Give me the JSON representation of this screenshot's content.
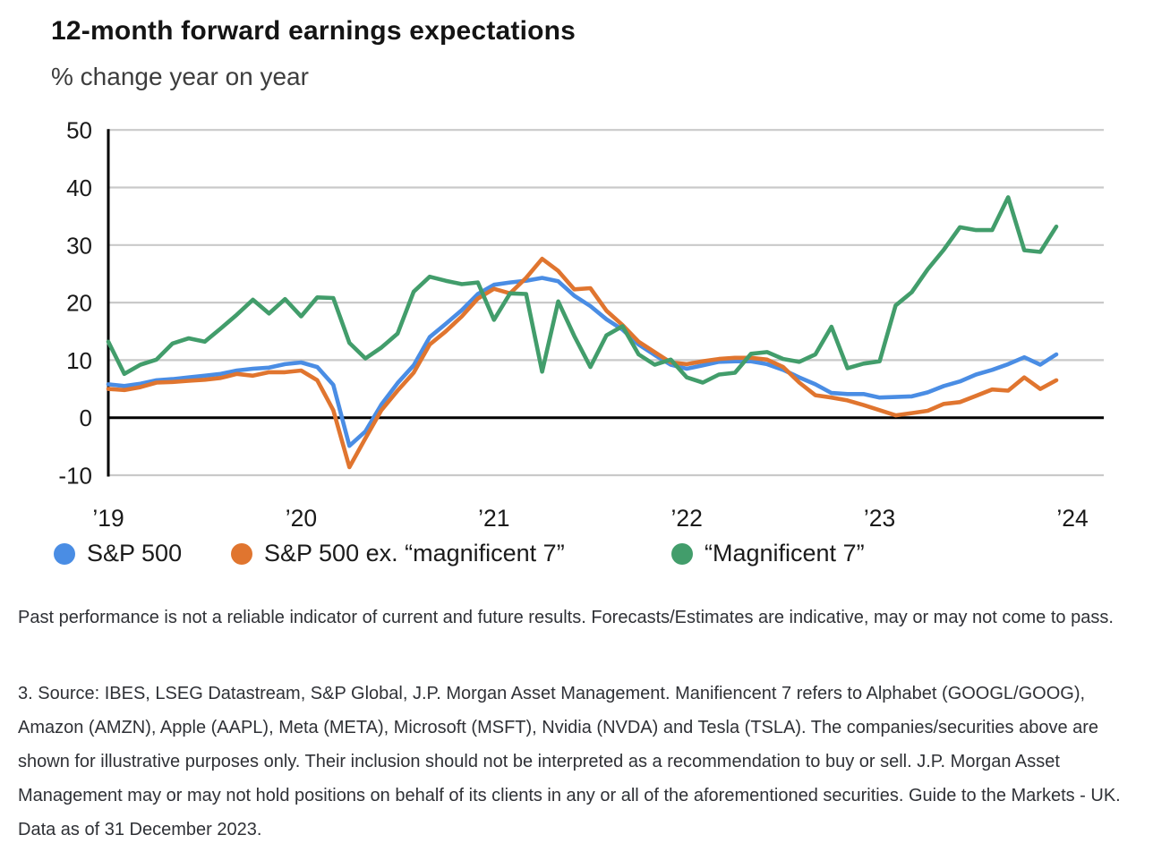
{
  "chart_data": {
    "type": "line",
    "title": "12-month forward earnings expectations",
    "subtitle": "% change year on year",
    "x_start": "2019-01",
    "x_interval": "monthly",
    "points_per_series": 60,
    "x_tick_labels": [
      "’19",
      "’20",
      "’21",
      "’22",
      "’23",
      "’24"
    ],
    "y_ticks": [
      50,
      40,
      30,
      20,
      10,
      0,
      -10
    ],
    "ylim": [
      -10,
      50
    ],
    "grid": true,
    "grid_color": "#c9c9c9",
    "axis_color": "#000000",
    "legend_position": "bottom",
    "series": [
      {
        "name": "S&P 500",
        "color": "#4A8DE4",
        "values": [
          5.8,
          5.5,
          5.9,
          6.5,
          6.7,
          7.0,
          7.3,
          7.6,
          8.2,
          8.5,
          8.7,
          9.3,
          9.6,
          8.8,
          5.7,
          -4.9,
          -2.4,
          2.3,
          6.0,
          9.1,
          14.0,
          16.3,
          18.7,
          21.5,
          23.1,
          23.5,
          23.8,
          24.3,
          23.7,
          21.2,
          19.4,
          17.1,
          15.3,
          12.7,
          10.9,
          9.2,
          8.5,
          9.1,
          9.7,
          9.8,
          9.8,
          9.3,
          8.3,
          7.0,
          5.8,
          4.3,
          4.1,
          4.1,
          3.5,
          3.6,
          3.7,
          4.4,
          5.5,
          6.3,
          7.5,
          8.3,
          9.3,
          10.5,
          9.2,
          11.0
        ]
      },
      {
        "name": "S&P 500 ex. “magnificent 7”",
        "color": "#E0752F",
        "values": [
          5.0,
          4.8,
          5.3,
          6.1,
          6.2,
          6.4,
          6.6,
          6.9,
          7.6,
          7.3,
          7.9,
          7.9,
          8.2,
          6.5,
          1.3,
          -8.6,
          -3.6,
          1.3,
          4.7,
          7.8,
          12.7,
          15.0,
          17.6,
          20.7,
          22.4,
          21.6,
          24.3,
          27.6,
          25.5,
          22.3,
          22.5,
          18.6,
          16.1,
          13.2,
          11.4,
          9.6,
          9.3,
          9.8,
          10.2,
          10.4,
          10.4,
          10.1,
          8.8,
          6.1,
          3.9,
          3.5,
          3.0,
          2.2,
          1.3,
          0.4,
          0.8,
          1.2,
          2.4,
          2.7,
          3.8,
          4.9,
          4.7,
          7.0,
          5.0,
          6.5
        ]
      },
      {
        "name": "“Magnificent 7”",
        "color": "#429D6B",
        "values": [
          13.2,
          7.6,
          9.2,
          10.1,
          12.9,
          13.8,
          13.2,
          15.5,
          17.9,
          20.5,
          18.1,
          20.6,
          17.6,
          20.9,
          20.8,
          13.0,
          10.3,
          12.2,
          14.6,
          21.9,
          24.5,
          23.8,
          23.2,
          23.5,
          17.0,
          21.6,
          21.5,
          8.0,
          20.2,
          14.2,
          8.8,
          14.3,
          15.9,
          11.0,
          9.2,
          10.1,
          7.0,
          6.1,
          7.5,
          7.8,
          11.1,
          11.4,
          10.2,
          9.7,
          11.0,
          15.8,
          8.6,
          9.4,
          9.8,
          19.5,
          21.8,
          25.8,
          29.2,
          33.1,
          32.6,
          32.6,
          38.3,
          29.1,
          28.8,
          33.2
        ]
      }
    ]
  },
  "footnotes": {
    "performance": "Past performance is not a reliable indicator of current and future results. Forecasts/Estimates are indicative, may or may not come to pass.",
    "source": "3. Source: IBES, LSEG Datastream, S&P Global, J.P. Morgan Asset Management. Manifiencent 7 refers to Alphabet (GOOGL/GOOG), Amazon (AMZN), Apple (AAPL), Meta (META), Microsoft (MSFT), Nvidia (NVDA) and Tesla (TSLA). The companies/securities above are shown for illustrative purposes only. Their inclusion should not be interpreted as a recommendation to buy or sell. J.P. Morgan Asset Management may or may not hold positions on behalf of its clients in any or all of the aforementioned securities. Guide to the Markets - UK. Data as of 31 December 2023."
  }
}
